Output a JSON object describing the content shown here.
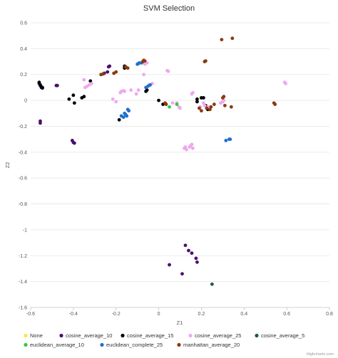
{
  "chart_data": {
    "type": "scatter",
    "title": "SVM Selection",
    "xlabel": "Z1",
    "ylabel": "Z2",
    "xlim": [
      -0.6,
      0.8
    ],
    "ylim": [
      -1.6,
      0.6
    ],
    "x_ticks": [
      "-0.6",
      "-0.4",
      "-0.2",
      "0",
      "0.2",
      "0.4",
      "0.6",
      "0.8"
    ],
    "y_ticks": [
      "0.6",
      "0.4",
      "0.2",
      "0",
      "-0.2",
      "-0.4",
      "-0.6",
      "-0.8",
      "-1",
      "-1.2",
      "-1.4",
      "-1.6"
    ],
    "grid": true,
    "legend_position": "bottom",
    "credit": "Highcharts.com",
    "series": [
      {
        "name": "None",
        "color": "#f5e94a",
        "points": []
      },
      {
        "name": "cosine_average_10",
        "color": "#4b0f6b",
        "points": [
          [
            -0.56,
            0.13
          ],
          [
            -0.555,
            0.115
          ],
          [
            -0.55,
            0.1
          ],
          [
            -0.545,
            0.095
          ],
          [
            -0.48,
            0.115
          ],
          [
            -0.475,
            0.115
          ],
          [
            -0.405,
            -0.31
          ],
          [
            -0.4,
            -0.325
          ],
          [
            -0.395,
            -0.33
          ],
          [
            -0.555,
            -0.16
          ],
          [
            -0.555,
            -0.175
          ],
          [
            -0.27,
            0.2
          ],
          [
            -0.255,
            0.21
          ],
          [
            -0.24,
            0.22
          ],
          [
            -0.235,
            0.26
          ],
          [
            -0.23,
            0.265
          ],
          [
            0.05,
            -1.27
          ],
          [
            0.11,
            -1.34
          ],
          [
            0.125,
            -1.12
          ],
          [
            0.14,
            -1.16
          ],
          [
            0.155,
            -1.18
          ],
          [
            0.175,
            -1.22
          ],
          [
            0.18,
            -1.25
          ]
        ]
      },
      {
        "name": "cosine_average_15",
        "color": "#000000",
        "points": [
          [
            -0.56,
            0.14
          ],
          [
            -0.555,
            0.12
          ],
          [
            -0.55,
            0.105
          ],
          [
            -0.545,
            0.1
          ],
          [
            -0.42,
            0.01
          ],
          [
            -0.4,
            0.04
          ],
          [
            -0.395,
            -0.02
          ],
          [
            -0.36,
            0.02
          ],
          [
            -0.35,
            0.03
          ],
          [
            -0.32,
            0.15
          ],
          [
            -0.185,
            -0.15
          ],
          [
            -0.16,
            0.25
          ],
          [
            -0.16,
            0.265
          ],
          [
            -0.155,
            0.26
          ],
          [
            -0.06,
            0.07
          ],
          [
            -0.055,
            0.08
          ],
          [
            0.0,
            0.0
          ],
          [
            0.02,
            -0.03
          ],
          [
            0.18,
            -0.01
          ],
          [
            0.18,
            0.01
          ],
          [
            0.2,
            0.02
          ],
          [
            0.21,
            0.02
          ],
          [
            0.22,
            -0.04
          ],
          [
            0.23,
            -0.07
          ]
        ]
      },
      {
        "name": "cosine_average_25",
        "color": "#f0a8f0",
        "points": [
          [
            -0.35,
            0.16
          ],
          [
            -0.345,
            0.1
          ],
          [
            -0.335,
            0.11
          ],
          [
            -0.325,
            0.12
          ],
          [
            -0.315,
            0.13
          ],
          [
            -0.215,
            0.01
          ],
          [
            -0.2,
            -0.01
          ],
          [
            -0.18,
            0.06
          ],
          [
            -0.175,
            0.07
          ],
          [
            -0.165,
            0.075
          ],
          [
            -0.16,
            0.07
          ],
          [
            -0.13,
            0.08
          ],
          [
            -0.105,
            0.05
          ],
          [
            -0.095,
            0.08
          ],
          [
            -0.07,
            0.2
          ],
          [
            -0.065,
            0.28
          ],
          [
            -0.055,
            0.29
          ],
          [
            -0.045,
            0.12
          ],
          [
            -0.03,
            0.13
          ],
          [
            0.04,
            0.23
          ],
          [
            0.045,
            0.225
          ],
          [
            0.065,
            -0.02
          ],
          [
            0.085,
            -0.02
          ],
          [
            0.095,
            -0.05
          ],
          [
            0.1,
            -0.06
          ],
          [
            0.12,
            -0.37
          ],
          [
            0.125,
            -0.36
          ],
          [
            0.13,
            -0.38
          ],
          [
            0.145,
            -0.36
          ],
          [
            0.15,
            -0.35
          ],
          [
            0.155,
            -0.34
          ],
          [
            0.16,
            -0.37
          ],
          [
            0.195,
            -0.05
          ],
          [
            0.21,
            -0.02
          ],
          [
            0.215,
            -0.04
          ],
          [
            0.23,
            -0.05
          ],
          [
            0.29,
            -0.02
          ],
          [
            0.3,
            -0.01
          ],
          [
            0.305,
            0.0
          ],
          [
            0.59,
            0.14
          ],
          [
            0.595,
            0.13
          ],
          [
            0.155,
            0.05
          ],
          [
            0.16,
            0.06
          ]
        ]
      },
      {
        "name": "cosine_average_5",
        "color": "#1f5c3a",
        "points": [
          [
            0.25,
            -1.42
          ]
        ]
      },
      {
        "name": "euclidean_average_10",
        "color": "#2ecc40",
        "points": [
          [
            0.05,
            -0.05
          ],
          [
            0.085,
            -0.03
          ]
        ]
      },
      {
        "name": "euclidean_complete_25",
        "color": "#1f6fd1",
        "points": [
          [
            -0.175,
            -0.12
          ],
          [
            -0.165,
            -0.13
          ],
          [
            -0.16,
            -0.1
          ],
          [
            -0.155,
            -0.11
          ],
          [
            -0.15,
            -0.12
          ],
          [
            -0.145,
            -0.07
          ],
          [
            -0.14,
            -0.08
          ],
          [
            -0.1,
            0.28
          ],
          [
            -0.095,
            0.285
          ],
          [
            -0.09,
            0.29
          ],
          [
            -0.08,
            0.29
          ],
          [
            -0.06,
            0.1
          ],
          [
            -0.05,
            0.11
          ],
          [
            -0.04,
            0.12
          ],
          [
            0.315,
            -0.31
          ],
          [
            0.33,
            -0.3
          ],
          [
            0.335,
            -0.3
          ]
        ]
      },
      {
        "name": "manhattan_average_20",
        "color": "#8b3a0f",
        "points": [
          [
            -0.27,
            0.2
          ],
          [
            -0.26,
            0.205
          ],
          [
            -0.21,
            0.21
          ],
          [
            -0.2,
            0.22
          ],
          [
            -0.155,
            0.26
          ],
          [
            -0.145,
            0.25
          ],
          [
            -0.075,
            0.3
          ],
          [
            -0.07,
            0.31
          ],
          [
            -0.065,
            0.305
          ],
          [
            0.03,
            -0.02
          ],
          [
            0.035,
            -0.03
          ],
          [
            0.2,
            -0.08
          ],
          [
            0.215,
            0.3
          ],
          [
            0.22,
            0.305
          ],
          [
            0.225,
            -0.06
          ],
          [
            0.24,
            -0.07
          ],
          [
            0.245,
            -0.05
          ],
          [
            0.26,
            -0.03
          ],
          [
            0.295,
            0.47
          ],
          [
            0.3,
            0.02
          ],
          [
            0.305,
            0.03
          ],
          [
            0.31,
            -0.04
          ],
          [
            0.34,
            -0.05
          ],
          [
            0.345,
            0.48
          ],
          [
            0.54,
            -0.02
          ],
          [
            0.545,
            -0.03
          ],
          [
            0.19,
            -0.06
          ]
        ]
      }
    ]
  }
}
